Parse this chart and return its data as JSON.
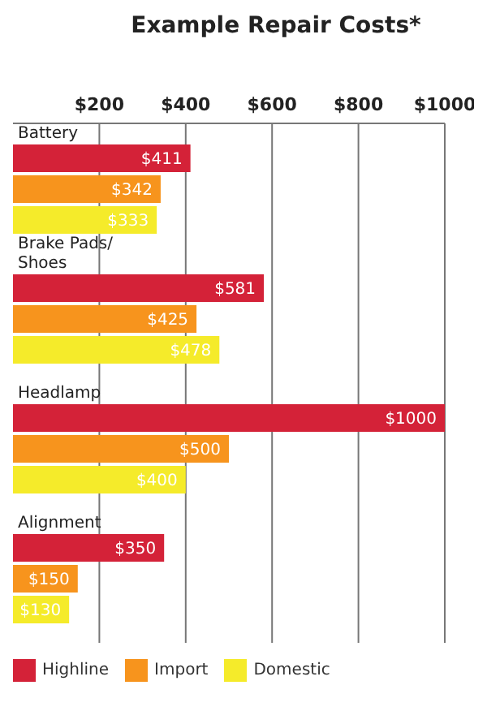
{
  "chart_data": {
    "type": "bar",
    "orientation": "horizontal",
    "title": "Example Repair Costs*",
    "categories": [
      "Battery",
      "Brake Pads/ Shoes",
      "Headlamp",
      "Alignment"
    ],
    "series": [
      {
        "name": "Highline",
        "color": "#d42238",
        "values": [
          411,
          581,
          1000,
          350
        ],
        "value_labels": [
          "$411",
          "$581",
          "$1000",
          "$350"
        ]
      },
      {
        "name": "Import",
        "color": "#f7941d",
        "values": [
          342,
          425,
          500,
          150
        ],
        "value_labels": [
          "$342",
          "$425",
          "$500",
          "$150"
        ]
      },
      {
        "name": "Domestic",
        "color": "#f5eb2a",
        "values": [
          333,
          478,
          400,
          130
        ],
        "value_labels": [
          "$333",
          "$478",
          "$400",
          "$130"
        ]
      }
    ],
    "xlim": [
      0,
      1000
    ],
    "xticks": [
      {
        "value": 200,
        "label": "$200"
      },
      {
        "value": 400,
        "label": "$400"
      },
      {
        "value": 600,
        "label": "$600"
      },
      {
        "value": 800,
        "label": "$800"
      },
      {
        "value": 1000,
        "label": "$1000"
      }
    ],
    "grid": "x",
    "legend": "bottom"
  }
}
